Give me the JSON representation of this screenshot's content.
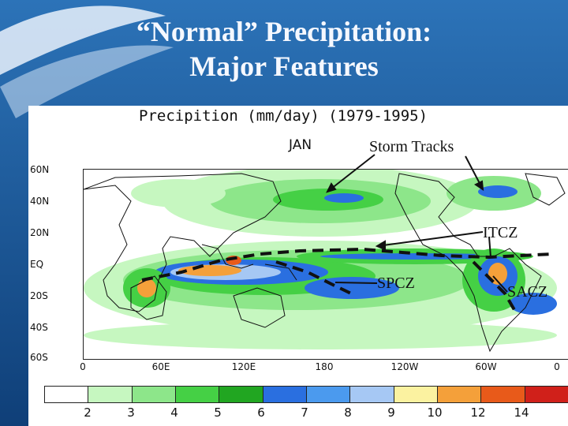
{
  "slide": {
    "title_line1": "“Normal” Precipitation:",
    "title_line2": "Major Features"
  },
  "figure": {
    "title": "Precipition (mm/day) (1979-1995)",
    "month": "JAN",
    "lat_labels": [
      "60N",
      "40N",
      "20N",
      "EQ",
      "20S",
      "40S",
      "60S"
    ],
    "lon_labels": [
      "0",
      "60E",
      "120E",
      "180",
      "120W",
      "60W",
      "0"
    ],
    "legend": {
      "levels": [
        "2",
        "3",
        "4",
        "5",
        "6",
        "7",
        "8",
        "9",
        "10",
        "12",
        "14"
      ],
      "colors": [
        "#ffffff",
        "#c6f7c0",
        "#8de68a",
        "#45d045",
        "#21a621",
        "#2a6fe0",
        "#4b9aee",
        "#a6c8f4",
        "#fbf2a0",
        "#f4a03a",
        "#e85a1a",
        "#d0201a"
      ]
    }
  },
  "annotations": {
    "storm_tracks": "Storm Tracks",
    "itcz": "ITCZ",
    "spcz": "SPCZ",
    "sacz": "SACZ"
  }
}
